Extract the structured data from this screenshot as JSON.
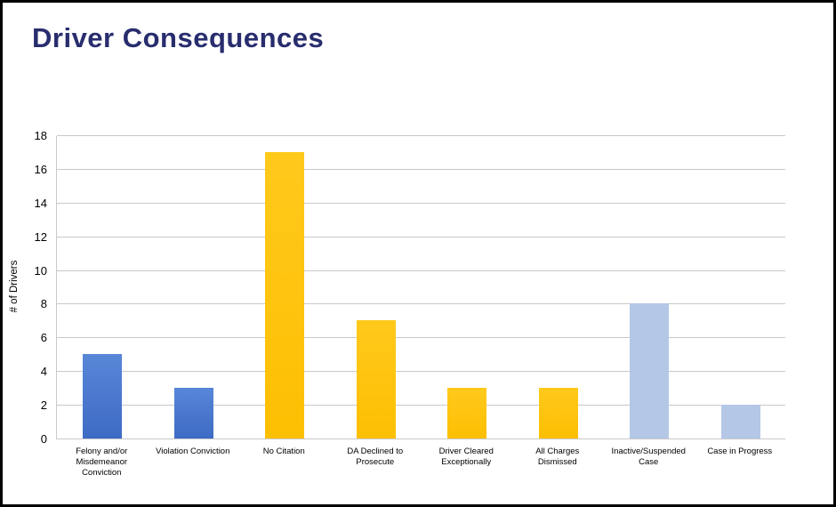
{
  "page": {
    "title": "Driver Consequences"
  },
  "chart_data": {
    "type": "bar",
    "title": "Driver Consequences",
    "xlabel": "",
    "ylabel": "# of Drivers",
    "categories": [
      "Felony and/or\nMisdemeanor\nConviction",
      "Violation Conviction",
      "No Citation",
      "DA Declined to\nProsecute",
      "Driver Cleared\nExceptionally",
      "All Charges\nDismissed",
      "Inactive/Suspended\nCase",
      "Case in Progress"
    ],
    "values": [
      5,
      3,
      17,
      7,
      3,
      3,
      8,
      2
    ],
    "bar_color_classes": [
      "blue",
      "blue",
      "gold",
      "gold",
      "gold",
      "gold",
      "lblue",
      "lblue"
    ],
    "bar_colors": [
      "#4472c4",
      "#4472c4",
      "#ffc20e",
      "#ffc20e",
      "#ffc20e",
      "#ffc20e",
      "#b4c7e7",
      "#b4c7e7"
    ],
    "ylim": [
      0,
      18
    ],
    "yticks": [
      0,
      2,
      4,
      6,
      8,
      10,
      12,
      14,
      16,
      18
    ],
    "grid": true,
    "legend": "none",
    "colors": {
      "title_text": "#282d6e",
      "gridline": "#c9c9c9",
      "axis_text": "#000000"
    }
  }
}
